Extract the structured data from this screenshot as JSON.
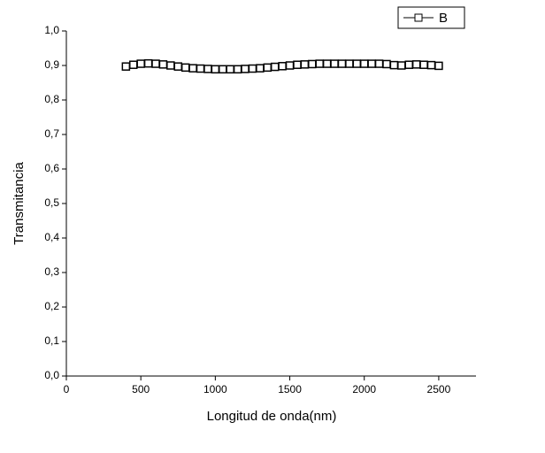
{
  "chart_data": {
    "type": "line",
    "x_label": "Longitud de onda(nm)",
    "y_label": "Transmitancia",
    "x": [
      400,
      450,
      500,
      550,
      600,
      650,
      700,
      750,
      800,
      850,
      900,
      950,
      1000,
      1050,
      1100,
      1150,
      1200,
      1250,
      1300,
      1350,
      1400,
      1450,
      1500,
      1550,
      1600,
      1650,
      1700,
      1750,
      1800,
      1850,
      1900,
      1950,
      2000,
      2050,
      2100,
      2150,
      2200,
      2250,
      2300,
      2350,
      2400,
      2450,
      2500
    ],
    "series": [
      {
        "name": "B",
        "color": "#000000",
        "values": [
          0.897,
          0.902,
          0.905,
          0.906,
          0.905,
          0.903,
          0.9,
          0.897,
          0.894,
          0.892,
          0.891,
          0.89,
          0.889,
          0.889,
          0.889,
          0.889,
          0.89,
          0.891,
          0.892,
          0.894,
          0.896,
          0.898,
          0.9,
          0.902,
          0.903,
          0.904,
          0.905,
          0.905,
          0.905,
          0.905,
          0.905,
          0.905,
          0.905,
          0.905,
          0.905,
          0.904,
          0.901,
          0.9,
          0.902,
          0.903,
          0.902,
          0.901,
          0.899
        ]
      }
    ],
    "xlim": [
      0,
      2750
    ],
    "xticks": [
      0,
      500,
      1000,
      1500,
      2000,
      2500
    ],
    "ylim": [
      0,
      1
    ],
    "yticks": [
      {
        "value": 0,
        "label": "0,0"
      },
      {
        "value": 0.1,
        "label": "0,1"
      },
      {
        "value": 0.2,
        "label": "0,2"
      },
      {
        "value": 0.3,
        "label": "0,3"
      },
      {
        "value": 0.4,
        "label": "0,4"
      },
      {
        "value": 0.5,
        "label": "0,5"
      },
      {
        "value": 0.6,
        "label": "0,6"
      },
      {
        "value": 0.7,
        "label": "0,7"
      },
      {
        "value": 0.8,
        "label": "0,8"
      },
      {
        "value": 0.9,
        "label": "0,9"
      },
      {
        "value": 1,
        "label": "1,0"
      }
    ],
    "legend": "top-right",
    "markers": "open-square"
  }
}
